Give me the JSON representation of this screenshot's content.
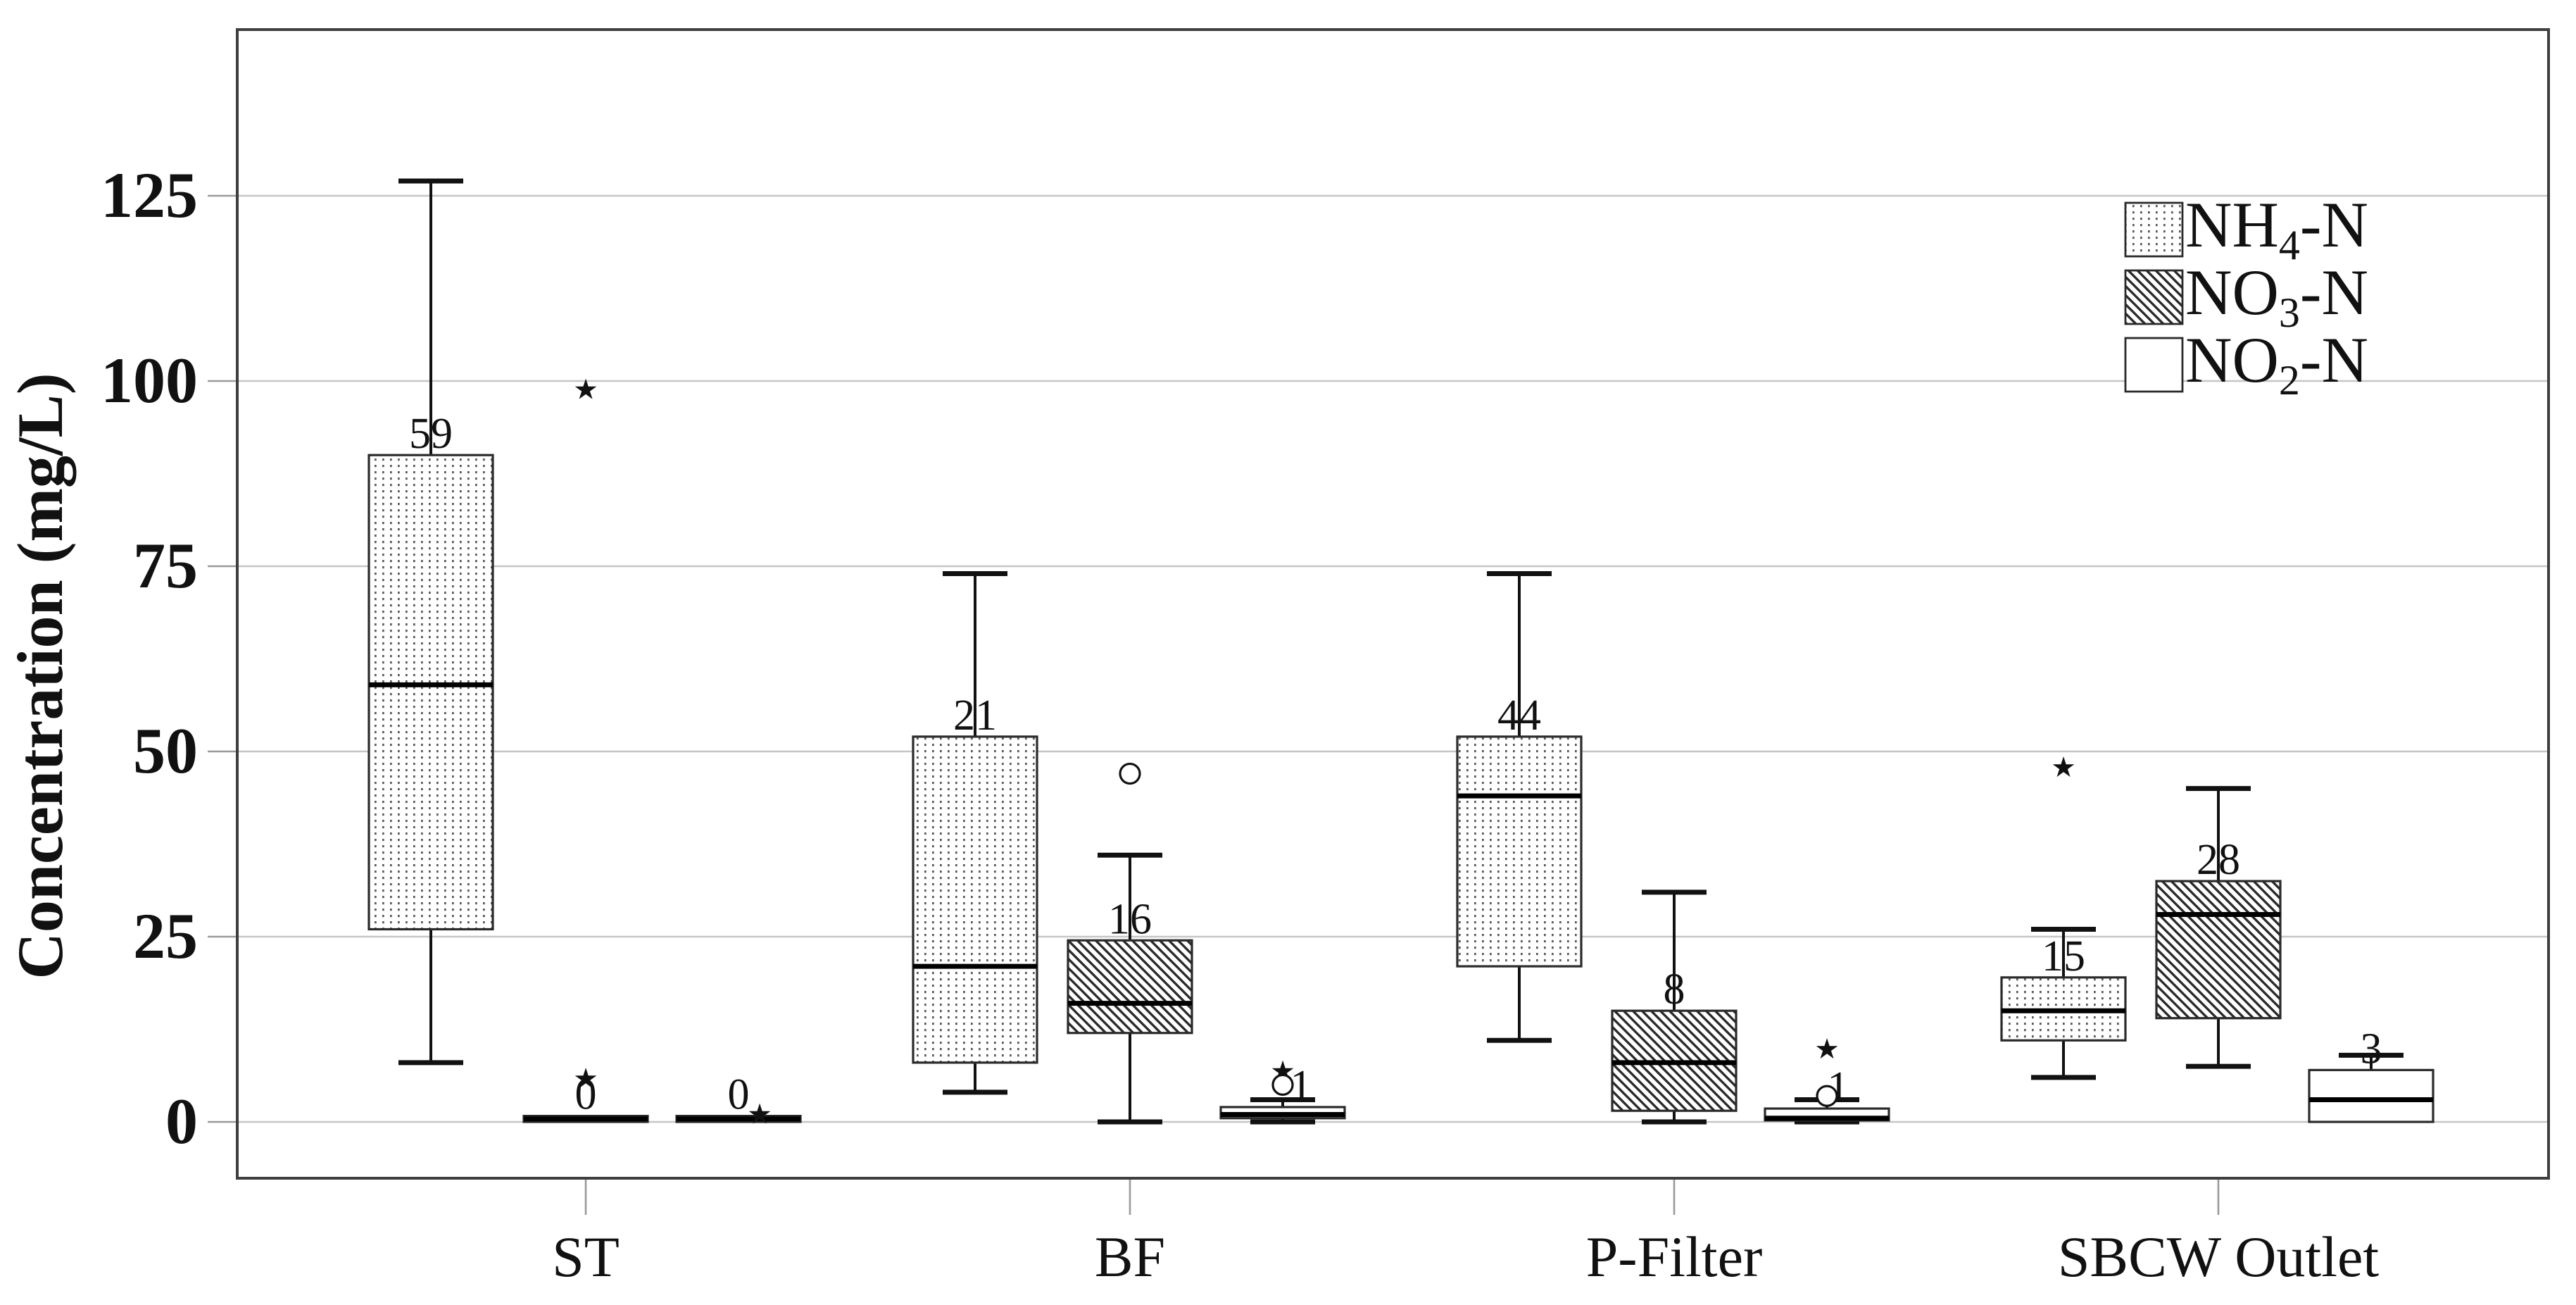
{
  "chart_data": {
    "type": "box",
    "title": "",
    "xlabel": "",
    "ylabel": "Concentration (mg/L)",
    "y_ticks": [
      0,
      25,
      50,
      75,
      100,
      125
    ],
    "ylim": [
      -7.5,
      147.5
    ],
    "grid": "horizontal",
    "legend_position": "top-right",
    "categories": [
      "ST",
      "BF",
      "P-Filter",
      "SBCW Outlet"
    ],
    "series": [
      {
        "name": "NH4-N",
        "pattern": "dots",
        "boxes": [
          {
            "category": "ST",
            "whisker_low": 8,
            "q1": 26,
            "median": 59,
            "q3": 90,
            "whisker_high": 127,
            "label": "59",
            "outliers": []
          },
          {
            "category": "BF",
            "whisker_low": 4,
            "q1": 8,
            "median": 21,
            "q3": 52,
            "whisker_high": 74,
            "label": "21",
            "outliers": []
          },
          {
            "category": "P-Filter",
            "whisker_low": 11,
            "q1": 21,
            "median": 44,
            "q3": 52,
            "whisker_high": 74,
            "label": "44",
            "outliers": []
          },
          {
            "category": "SBCW Outlet",
            "whisker_low": 6,
            "q1": 11,
            "median": 15,
            "q3": 19.5,
            "whisker_high": 26,
            "label": "15",
            "outliers": [
              {
                "type": "star",
                "value": 48
              }
            ]
          }
        ]
      },
      {
        "name": "NO3-N",
        "pattern": "diagonal",
        "boxes": [
          {
            "category": "ST",
            "whisker_low": 0,
            "q1": 0,
            "median": 0.4,
            "q3": 0.8,
            "whisker_high": 0.8,
            "label": "0",
            "outliers": [
              {
                "type": "star",
                "value": 99
              },
              {
                "type": "star",
                "value": 6
              }
            ]
          },
          {
            "category": "BF",
            "whisker_low": 0,
            "q1": 12,
            "median": 16,
            "q3": 24.5,
            "whisker_high": 36,
            "label": "16",
            "outliers": [
              {
                "type": "circle",
                "value": 47
              }
            ]
          },
          {
            "category": "P-Filter",
            "whisker_low": 0,
            "q1": 1.5,
            "median": 8,
            "q3": 15,
            "whisker_high": 31,
            "label": "8",
            "outliers": []
          },
          {
            "category": "SBCW Outlet",
            "whisker_low": 7.5,
            "q1": 14,
            "median": 28,
            "q3": 32.5,
            "whisker_high": 45,
            "label": "28",
            "outliers": []
          }
        ]
      },
      {
        "name": "NO2-N",
        "pattern": "plain",
        "boxes": [
          {
            "category": "ST",
            "whisker_low": 0,
            "q1": 0,
            "median": 0.4,
            "q3": 0.8,
            "whisker_high": 0.8,
            "label": "0",
            "outliers": [
              {
                "type": "star",
                "value": 1.2,
                "dx": 30
              }
            ]
          },
          {
            "category": "BF",
            "whisker_low": 0,
            "q1": 0.5,
            "median": 1,
            "q3": 2,
            "whisker_high": 3,
            "label": "1",
            "label_dx": 26,
            "outliers": [
              {
                "type": "star",
                "value": 7
              },
              {
                "type": "circle",
                "value": 5
              }
            ]
          },
          {
            "category": "P-Filter",
            "whisker_low": 0,
            "q1": 0.2,
            "median": 0.5,
            "q3": 1.8,
            "whisker_high": 3,
            "label": "1",
            "label_dx": 16,
            "outliers": [
              {
                "type": "star",
                "value": 10
              },
              {
                "type": "circle",
                "value": 3.5
              }
            ]
          },
          {
            "category": "SBCW Outlet",
            "whisker_low": 0,
            "q1": 0,
            "median": 3,
            "q3": 7,
            "whisker_high": 9,
            "label": "3",
            "outliers": []
          }
        ]
      }
    ],
    "legend": [
      {
        "prefix": "NH",
        "sub": "4",
        "suffix": "-N",
        "pattern": "dots"
      },
      {
        "prefix": "NO",
        "sub": "3",
        "suffix": "-N",
        "pattern": "diagonal"
      },
      {
        "prefix": "NO",
        "sub": "2",
        "suffix": "-N",
        "pattern": "plain"
      }
    ],
    "colors": {
      "ink": "#111111",
      "box_border": "#2a2a2a",
      "frame": "#3f3f3f",
      "gridline": "#c6c6c6",
      "fill_background": "#ffffff"
    }
  }
}
